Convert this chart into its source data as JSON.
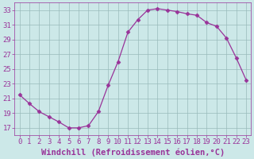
{
  "x": [
    0,
    1,
    2,
    3,
    4,
    5,
    6,
    7,
    8,
    9,
    10,
    11,
    12,
    13,
    14,
    15,
    16,
    17,
    18,
    19,
    20,
    21,
    22,
    23
  ],
  "y": [
    21.5,
    20.3,
    19.2,
    18.5,
    17.8,
    17.0,
    17.0,
    17.3,
    19.2,
    22.8,
    26.0,
    30.0,
    31.7,
    33.0,
    33.2,
    33.0,
    32.8,
    32.5,
    32.3,
    31.3,
    30.8,
    29.2,
    26.5,
    23.5
  ],
  "line_color": "#993399",
  "marker": "D",
  "marker_size": 2.5,
  "bg_color": "#cce8e8",
  "grid_color": "#99bbbb",
  "xlabel": "Windchill (Refroidissement éolien,°C)",
  "xlabel_fontsize": 7.5,
  "tick_fontsize": 6.5,
  "ylim": [
    16,
    34
  ],
  "xlim": [
    -0.5,
    23.5
  ],
  "yticks": [
    17,
    19,
    21,
    23,
    25,
    27,
    29,
    31,
    33
  ],
  "xticks": [
    0,
    1,
    2,
    3,
    4,
    5,
    6,
    7,
    8,
    9,
    10,
    11,
    12,
    13,
    14,
    15,
    16,
    17,
    18,
    19,
    20,
    21,
    22,
    23
  ]
}
